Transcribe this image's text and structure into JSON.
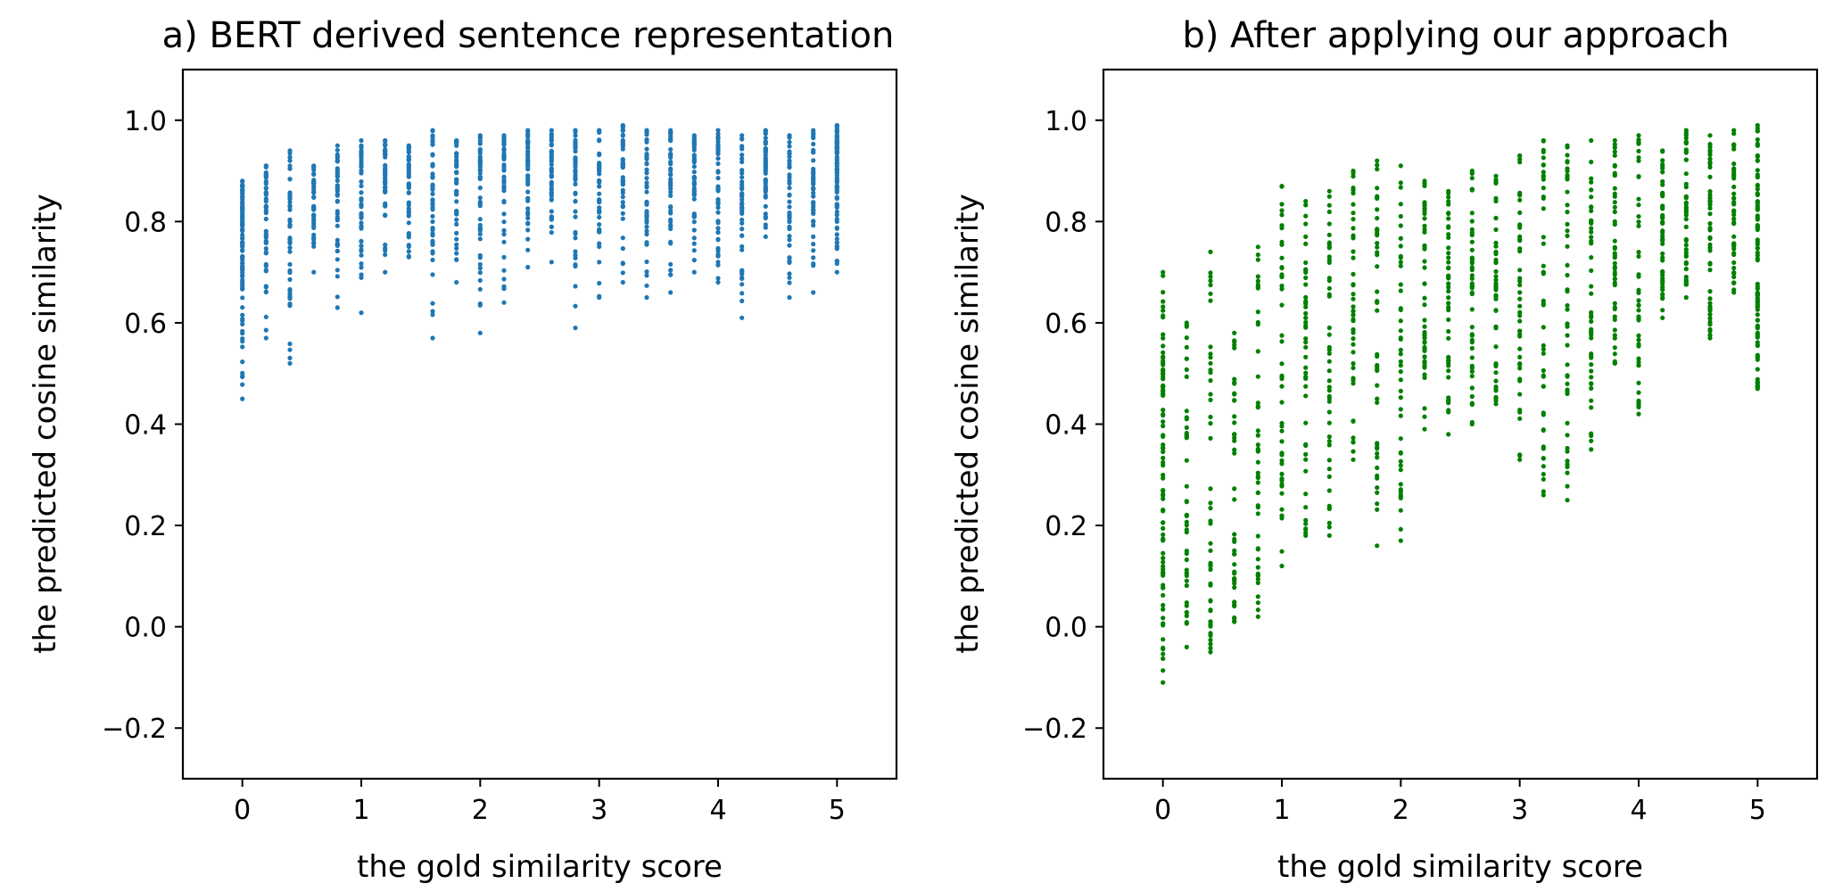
{
  "chart_data": [
    {
      "type": "scatter",
      "title": "a) BERT derived sentence representation",
      "xlabel": "the gold similarity score",
      "ylabel": "the predicted cosine similarity",
      "xlim": [
        -0.5,
        5.5
      ],
      "ylim": [
        -0.3,
        1.1
      ],
      "xticks": [
        "0",
        "1",
        "2",
        "3",
        "4",
        "5"
      ],
      "yticks": [
        "−0.2",
        "0.0",
        "0.2",
        "0.4",
        "0.6",
        "0.8",
        "1.0"
      ],
      "grid": false,
      "color": "#1f77b4",
      "series": [
        {
          "columns": [
            {
              "x": 0.0,
              "min": 0.45,
              "max": 0.88
            },
            {
              "x": 0.2,
              "min": 0.57,
              "max": 0.91
            },
            {
              "x": 0.4,
              "min": 0.52,
              "max": 0.94
            },
            {
              "x": 0.6,
              "min": 0.7,
              "max": 0.91
            },
            {
              "x": 0.8,
              "min": 0.63,
              "max": 0.95
            },
            {
              "x": 1.0,
              "min": 0.62,
              "max": 0.96
            },
            {
              "x": 1.2,
              "min": 0.7,
              "max": 0.96
            },
            {
              "x": 1.4,
              "min": 0.73,
              "max": 0.95
            },
            {
              "x": 1.6,
              "min": 0.57,
              "max": 0.98
            },
            {
              "x": 1.8,
              "min": 0.68,
              "max": 0.96
            },
            {
              "x": 2.0,
              "min": 0.58,
              "max": 0.97
            },
            {
              "x": 2.2,
              "min": 0.64,
              "max": 0.97
            },
            {
              "x": 2.4,
              "min": 0.71,
              "max": 0.98
            },
            {
              "x": 2.6,
              "min": 0.72,
              "max": 0.98
            },
            {
              "x": 2.8,
              "min": 0.59,
              "max": 0.98
            },
            {
              "x": 3.0,
              "min": 0.65,
              "max": 0.98
            },
            {
              "x": 3.2,
              "min": 0.68,
              "max": 0.99
            },
            {
              "x": 3.4,
              "min": 0.65,
              "max": 0.98
            },
            {
              "x": 3.6,
              "min": 0.66,
              "max": 0.98
            },
            {
              "x": 3.8,
              "min": 0.7,
              "max": 0.97
            },
            {
              "x": 4.0,
              "min": 0.68,
              "max": 0.98
            },
            {
              "x": 4.2,
              "min": 0.61,
              "max": 0.97
            },
            {
              "x": 4.4,
              "min": 0.77,
              "max": 0.98
            },
            {
              "x": 4.6,
              "min": 0.65,
              "max": 0.97
            },
            {
              "x": 4.8,
              "min": 0.66,
              "max": 0.98
            },
            {
              "x": 5.0,
              "min": 0.7,
              "max": 0.99
            }
          ]
        }
      ]
    },
    {
      "type": "scatter",
      "title": "b) After applying our approach",
      "xlabel": "the gold similarity score",
      "ylabel": "the predicted cosine similarity",
      "xlim": [
        -0.5,
        5.5
      ],
      "ylim": [
        -0.3,
        1.1
      ],
      "xticks": [
        "0",
        "1",
        "2",
        "3",
        "4",
        "5"
      ],
      "yticks": [
        "−0.2",
        "0.0",
        "0.2",
        "0.4",
        "0.6",
        "0.8",
        "1.0"
      ],
      "grid": false,
      "color": "#008000",
      "series": [
        {
          "columns": [
            {
              "x": 0.0,
              "min": -0.11,
              "max": 0.7
            },
            {
              "x": 0.2,
              "min": -0.04,
              "max": 0.6
            },
            {
              "x": 0.4,
              "min": -0.05,
              "max": 0.74
            },
            {
              "x": 0.6,
              "min": 0.01,
              "max": 0.58
            },
            {
              "x": 0.8,
              "min": 0.02,
              "max": 0.75
            },
            {
              "x": 1.0,
              "min": 0.12,
              "max": 0.87
            },
            {
              "x": 1.2,
              "min": 0.18,
              "max": 0.84
            },
            {
              "x": 1.4,
              "min": 0.18,
              "max": 0.86
            },
            {
              "x": 1.6,
              "min": 0.33,
              "max": 0.9
            },
            {
              "x": 1.8,
              "min": 0.16,
              "max": 0.92
            },
            {
              "x": 2.0,
              "min": 0.17,
              "max": 0.91
            },
            {
              "x": 2.2,
              "min": 0.39,
              "max": 0.88
            },
            {
              "x": 2.4,
              "min": 0.38,
              "max": 0.86
            },
            {
              "x": 2.6,
              "min": 0.4,
              "max": 0.9
            },
            {
              "x": 2.8,
              "min": 0.44,
              "max": 0.89
            },
            {
              "x": 3.0,
              "min": 0.33,
              "max": 0.93
            },
            {
              "x": 3.2,
              "min": 0.26,
              "max": 0.96
            },
            {
              "x": 3.4,
              "min": 0.25,
              "max": 0.95
            },
            {
              "x": 3.6,
              "min": 0.35,
              "max": 0.96
            },
            {
              "x": 3.8,
              "min": 0.52,
              "max": 0.96
            },
            {
              "x": 4.0,
              "min": 0.42,
              "max": 0.97
            },
            {
              "x": 4.2,
              "min": 0.61,
              "max": 0.94
            },
            {
              "x": 4.4,
              "min": 0.65,
              "max": 0.98
            },
            {
              "x": 4.6,
              "min": 0.57,
              "max": 0.97
            },
            {
              "x": 4.8,
              "min": 0.66,
              "max": 0.98
            },
            {
              "x": 5.0,
              "min": 0.47,
              "max": 0.99
            }
          ]
        }
      ]
    }
  ]
}
